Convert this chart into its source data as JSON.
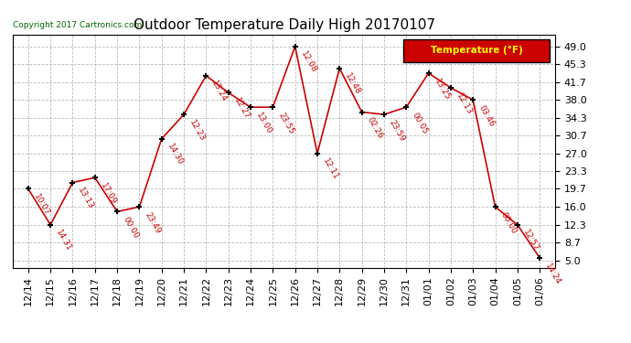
{
  "title": "Outdoor Temperature Daily High 20170107",
  "copyright": "Copyright 2017 Cartronics.com",
  "legend_label": "Temperature (°F)",
  "x_labels": [
    "12/14",
    "12/15",
    "12/16",
    "12/17",
    "12/18",
    "12/19",
    "12/20",
    "12/21",
    "12/22",
    "12/23",
    "12/24",
    "12/25",
    "12/26",
    "12/27",
    "12/28",
    "12/29",
    "12/30",
    "12/31",
    "01/01",
    "01/02",
    "01/03",
    "01/04",
    "01/05",
    "01/06"
  ],
  "y_values": [
    19.7,
    12.3,
    21.0,
    22.0,
    15.0,
    16.0,
    30.0,
    35.0,
    43.0,
    39.5,
    36.5,
    36.5,
    49.0,
    27.0,
    44.5,
    35.5,
    35.0,
    36.5,
    43.5,
    40.5,
    38.0,
    16.0,
    12.3,
    5.5
  ],
  "time_labels": [
    "10:07",
    "14:31",
    "13:13",
    "17:09",
    "00:00",
    "23:49",
    "14:30",
    "12:23",
    "13:24",
    "12:27",
    "13:00",
    "23:55",
    "12:08",
    "12:11",
    "12:48",
    "02:26",
    "23:59",
    "00:05",
    "13:25",
    "12:13",
    "03:46",
    "00:00",
    "12:57",
    "14:24"
  ],
  "line_color": "#cc0000",
  "marker_color": "#000000",
  "bg_color": "#ffffff",
  "plot_bg_color": "#ffffff",
  "grid_color": "#aaaaaa",
  "title_fontsize": 11,
  "tick_fontsize": 8,
  "y_ticks": [
    5.0,
    8.7,
    12.3,
    16.0,
    19.7,
    23.3,
    27.0,
    30.7,
    34.3,
    38.0,
    41.7,
    45.3,
    49.0
  ],
  "ylim": [
    3.5,
    51.5
  ],
  "legend_bg": "#cc0000",
  "legend_text_color": "#ffff00"
}
